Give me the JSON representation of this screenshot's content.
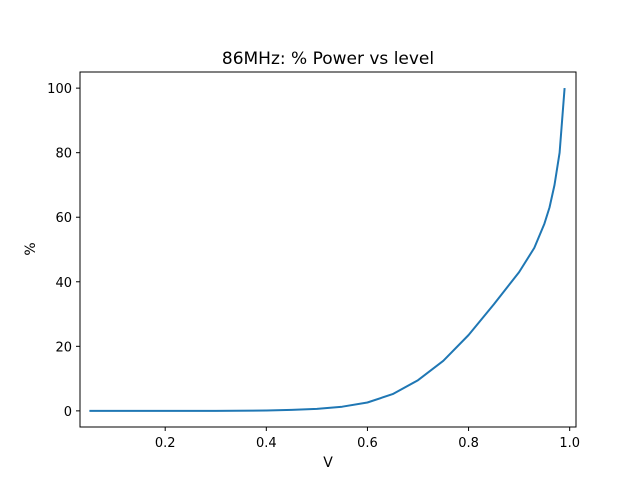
{
  "chart_data": {
    "type": "line",
    "title": "86MHz: % Power vs level",
    "xlabel": "V",
    "ylabel": "%",
    "xlim": [
      0.0315,
      1.0125
    ],
    "ylim": [
      -5,
      105
    ],
    "xticks": [
      0.2,
      0.4,
      0.6,
      0.8,
      1.0
    ],
    "xtick_labels": [
      "0.2",
      "0.4",
      "0.6",
      "0.8",
      "1.0"
    ],
    "yticks": [
      0,
      20,
      40,
      60,
      80,
      100
    ],
    "ytick_labels": [
      "0",
      "20",
      "40",
      "60",
      "80",
      "100"
    ],
    "grid": false,
    "series": [
      {
        "color": "#1f77b4",
        "x": [
          0.05,
          0.1,
          0.2,
          0.3,
          0.4,
          0.45,
          0.5,
          0.55,
          0.6,
          0.65,
          0.7,
          0.75,
          0.8,
          0.85,
          0.9,
          0.93,
          0.95,
          0.96,
          0.97,
          0.98,
          0.99
        ],
        "values": [
          0,
          0,
          0,
          0,
          0.1,
          0.3,
          0.6,
          1.3,
          2.6,
          5.2,
          9.5,
          15.5,
          23.5,
          33,
          43,
          50.5,
          58,
          63,
          70,
          80,
          100
        ]
      }
    ]
  }
}
